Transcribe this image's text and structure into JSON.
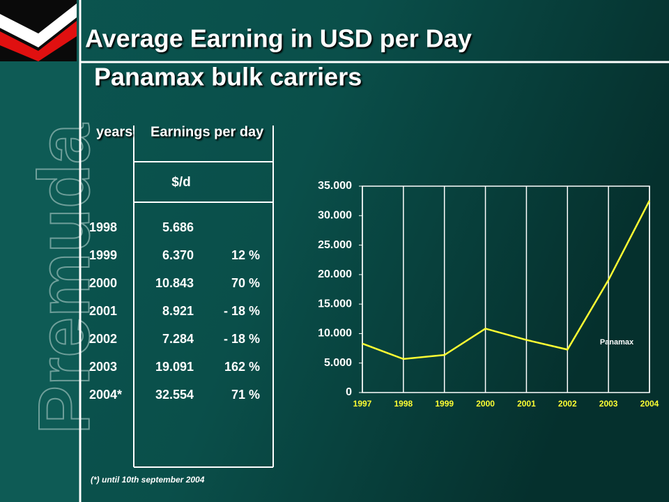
{
  "logo_text": "Premuda",
  "header": {
    "title": "Average Earning in USD per Day",
    "subtitle": "Panamax bulk carriers"
  },
  "table": {
    "headers": [
      "years",
      "Earnings per day"
    ],
    "unit": "$/d",
    "rows": [
      [
        "1998",
        "5.686"
      ],
      [
        "1999",
        "6.370",
        "12 %"
      ],
      [
        "2000",
        "10.843",
        "70 %"
      ],
      [
        "2001",
        "8.921",
        "- 18 %"
      ],
      [
        "2002",
        "7.284",
        "- 18 %"
      ],
      [
        "2003",
        "19.091",
        "162 %"
      ],
      [
        "2004*",
        "32.554",
        "71 %"
      ]
    ],
    "footnote": "(*) until 10th september 2004"
  },
  "chart_data": {
    "type": "line",
    "categories": [
      "1997",
      "1998",
      "1999",
      "2000",
      "2001",
      "2002",
      "2003",
      "2004"
    ],
    "series": [
      {
        "name": "Panamax",
        "color": "#ffff33",
        "values": [
          8300,
          5686,
          6370,
          10843,
          8921,
          7284,
          19091,
          32554
        ]
      }
    ],
    "ylim": [
      0,
      35000
    ],
    "yticks": [
      0,
      {
        "value": 5000,
        "label": "5.000"
      },
      {
        "value": 10000,
        "label": "10.000"
      },
      {
        "value": 15000,
        "label": "15.000"
      },
      {
        "value": 20000,
        "label": "20.000"
      },
      {
        "value": 25000,
        "label": "25.000"
      },
      {
        "value": 30000,
        "label": "30.000"
      },
      {
        "value": 35000,
        "label": "35.000"
      }
    ],
    "grid": true
  }
}
